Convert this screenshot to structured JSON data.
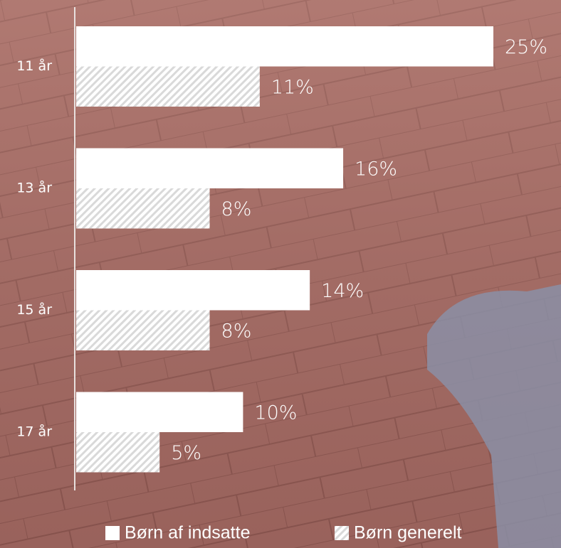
{
  "chart_data": {
    "type": "bar",
    "orientation": "horizontal",
    "categories": [
      "11 år",
      "13 år",
      "15 år",
      "17 år"
    ],
    "series": [
      {
        "name": "Børn af indsatte",
        "color": "#ffffff",
        "hatch": false,
        "values": [
          25,
          16,
          14,
          10
        ],
        "value_labels": [
          "25%",
          "16%",
          "14%",
          "10%"
        ]
      },
      {
        "name": "Børn generelt",
        "color": "#d9d9d9",
        "hatch": true,
        "values": [
          11,
          8,
          8,
          5
        ],
        "value_labels": [
          "11%",
          "8%",
          "8%",
          "5%"
        ]
      }
    ],
    "legend": "bottom"
  }
}
